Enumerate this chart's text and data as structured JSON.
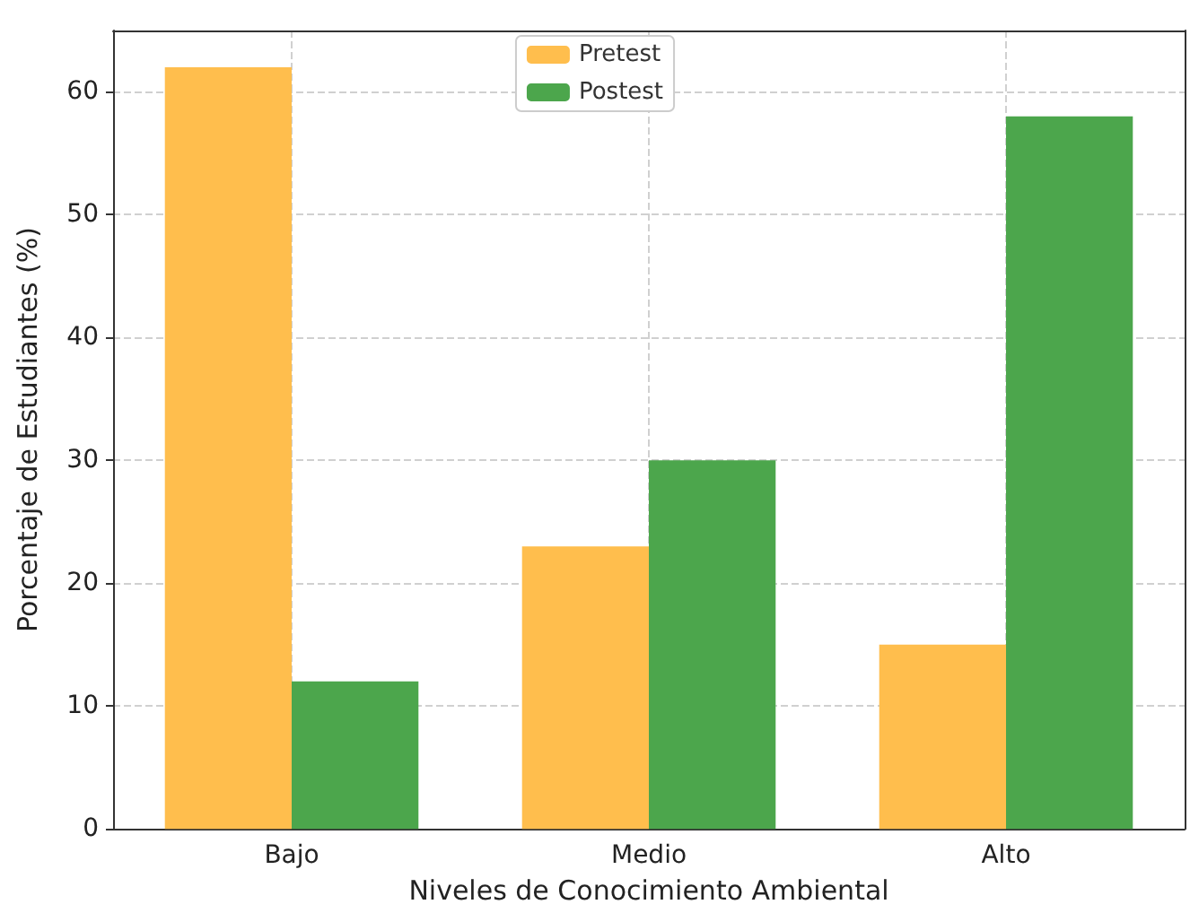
{
  "chart_data": {
    "type": "bar",
    "xlabel": "Niveles de Conocimiento Ambiental",
    "ylabel": "Porcentaje de Estudiantes (%)",
    "categories": [
      "Bajo",
      "Medio",
      "Alto"
    ],
    "series": [
      {
        "name": "Pretest",
        "color": "#ffbe4d",
        "values": [
          62,
          23,
          15
        ]
      },
      {
        "name": "Postest",
        "color": "#4ca64c",
        "values": [
          12,
          30,
          58
        ]
      }
    ],
    "ylim": [
      0,
      65
    ],
    "yticks": [
      0,
      10,
      20,
      30,
      40,
      50,
      60
    ],
    "grid": true,
    "legend": "top"
  }
}
